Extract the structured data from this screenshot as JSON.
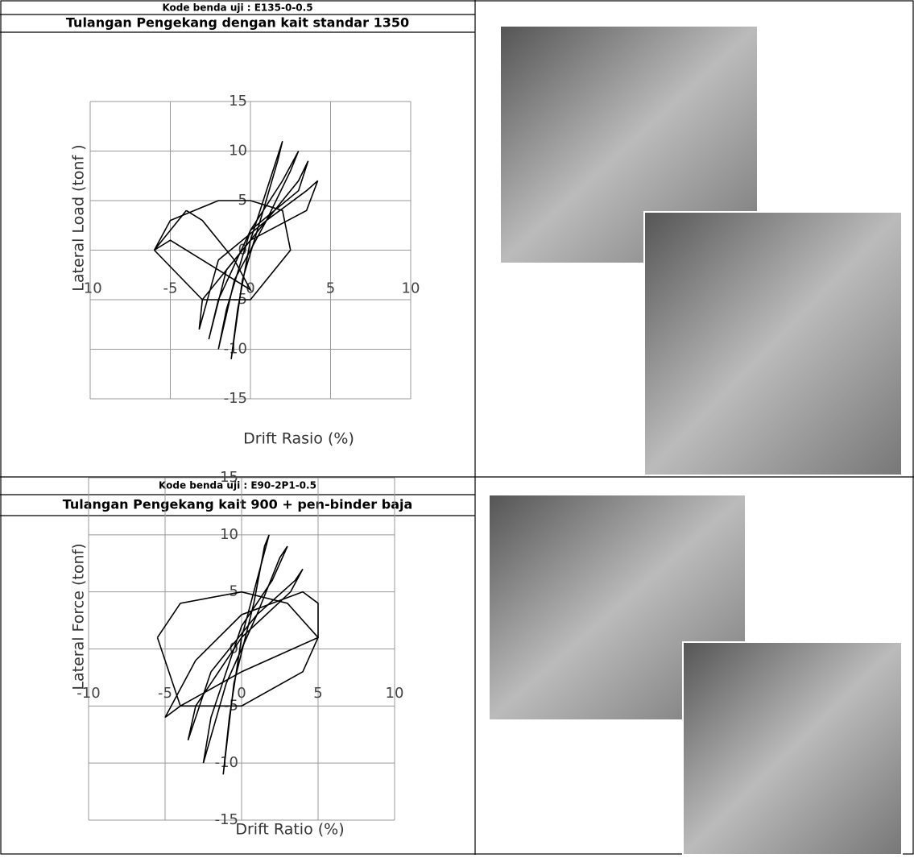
{
  "table": {
    "rows": [
      {
        "code": "Kode benda uji :  E135-0-0.5",
        "title": "Tulangan Pengekang dengan kait standar 1350"
      },
      {
        "code": "Kode benda uji :  E90-2P1-0.5",
        "title": "Tulangan Pengekang  kait 900 + pen-binder baja"
      }
    ]
  },
  "chart_data": [
    {
      "type": "line",
      "xlabel": "Drift Rasio (%)",
      "ylabel": "Lateral Load (tonf )",
      "xlim": [
        -10,
        10
      ],
      "ylim": [
        -15,
        15
      ],
      "xticks": [
        -10,
        -5,
        0,
        5,
        10
      ],
      "yticks": [
        15,
        10,
        5,
        0,
        -5,
        -10,
        -15
      ],
      "grid": true,
      "series": [
        {
          "color": "#000000",
          "x": [
            -0.5,
            0.8,
            1.7,
            2.0,
            1.2,
            0,
            -0.8,
            -1.2,
            -0.5
          ],
          "values": [
            -3,
            4,
            9,
            11,
            7,
            1,
            -6,
            -11,
            -3
          ]
        },
        {
          "color": "#000000",
          "x": [
            -1,
            1,
            2.5,
            3,
            2,
            0,
            -1.5,
            -2,
            -1
          ],
          "values": [
            -3,
            3,
            8,
            10,
            7,
            2,
            -6,
            -10,
            -3
          ]
        },
        {
          "color": "#000000",
          "x": [
            -1.5,
            1,
            3,
            3.6,
            3,
            0,
            -2,
            -2.6,
            -1.5
          ],
          "values": [
            -2,
            3,
            7,
            9,
            6,
            2,
            -5,
            -9,
            -2
          ]
        },
        {
          "color": "#000000",
          "x": [
            -2,
            1,
            3.5,
            4.2,
            3.5,
            0,
            -3,
            -3.2,
            -2
          ],
          "values": [
            -1,
            3,
            6,
            7,
            4,
            1,
            -5,
            -8,
            -1
          ]
        },
        {
          "color": "#000000",
          "x": [
            -4,
            -3,
            -1,
            0,
            -2,
            -5,
            -6,
            -4
          ],
          "values": [
            4,
            3,
            -1,
            -4,
            -2,
            1,
            0,
            4
          ]
        },
        {
          "color": "#000000",
          "x": [
            -6,
            -5,
            -2,
            0,
            2,
            2.5,
            0,
            -3,
            -6
          ],
          "values": [
            0,
            3,
            5,
            5,
            4,
            0,
            -5,
            -5,
            0
          ]
        }
      ]
    },
    {
      "type": "line",
      "xlabel": "Drift Ratio (%)",
      "ylabel": "Lateral Force (tonf)",
      "xlim": [
        -10,
        10
      ],
      "ylim": [
        -15,
        15
      ],
      "xticks": [
        -10,
        -5,
        0,
        5,
        10
      ],
      "yticks": [
        15,
        10,
        5,
        0,
        -5,
        -10,
        -15
      ],
      "grid": true,
      "series": [
        {
          "color": "#000000",
          "x": [
            -0.5,
            0.8,
            1.5,
            1.8,
            1,
            0,
            -0.8,
            -1.2,
            -0.5
          ],
          "values": [
            -3,
            4,
            9,
            10,
            6,
            1,
            -6,
            -11,
            -3
          ]
        },
        {
          "color": "#000000",
          "x": [
            -1,
            1,
            2.5,
            3,
            2,
            0,
            -2,
            -2.5,
            -1
          ],
          "values": [
            -3,
            3,
            8,
            9,
            6,
            2,
            -6,
            -10,
            -3
          ]
        },
        {
          "color": "#000000",
          "x": [
            -2,
            1,
            3.5,
            4,
            3.2,
            0,
            -3,
            -3.5,
            -2
          ],
          "values": [
            -2,
            3,
            6,
            7,
            5,
            1,
            -5,
            -8,
            -2
          ]
        },
        {
          "color": "#000000",
          "x": [
            -3,
            0,
            4,
            5,
            5,
            0,
            -4,
            -5,
            -3
          ],
          "values": [
            -1,
            3,
            5,
            4,
            1,
            -2,
            -5,
            -6,
            -1
          ]
        },
        {
          "color": "#000000",
          "x": [
            -5.5,
            -4,
            0,
            3,
            5,
            4,
            0,
            -4,
            -5.5
          ],
          "values": [
            1,
            4,
            5,
            4,
            1,
            -2,
            -5,
            -5,
            1
          ]
        }
      ]
    }
  ]
}
